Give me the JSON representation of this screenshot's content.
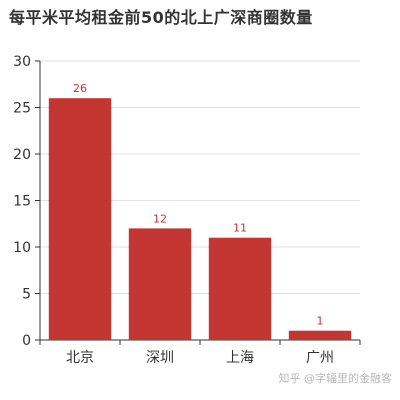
{
  "chart_data": {
    "type": "bar",
    "title": "每平米平均租金前50的北上广深商圈数量",
    "categories": [
      "北京",
      "深圳",
      "上海",
      "广州"
    ],
    "values": [
      26,
      12,
      11,
      1
    ],
    "data_labels": [
      "26",
      "12",
      "11",
      "1"
    ],
    "ylim": [
      0,
      30
    ],
    "yticks": [
      0,
      5,
      10,
      15,
      20,
      25,
      30
    ],
    "ytick_labels": [
      "0",
      "5",
      "10",
      "15",
      "20",
      "25",
      "30"
    ],
    "xlabel": "",
    "ylabel": "",
    "grid": true,
    "bar_color": "#c23531",
    "label_color": "#c23531"
  },
  "watermark": "知乎 @字辐里的金融客"
}
